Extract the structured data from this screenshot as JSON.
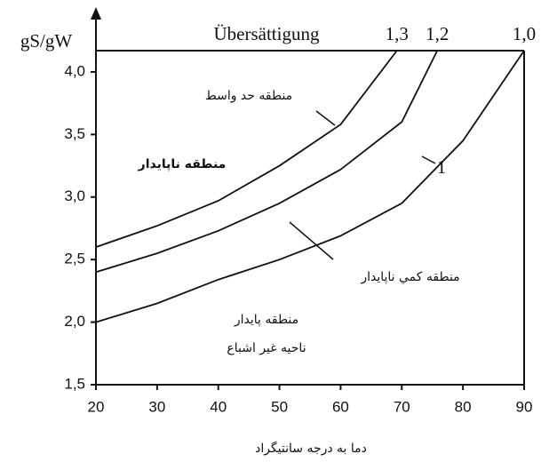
{
  "chart_data": {
    "type": "line",
    "title": "Übersättigung",
    "y_label": "gS/gW",
    "x_label": "دما به درجه سانتیگراد",
    "xlim": [
      20,
      90
    ],
    "xticks": [
      20,
      30,
      40,
      50,
      60,
      70,
      80,
      90
    ],
    "ylim": [
      1.5,
      4.17
    ],
    "yticks": [
      {
        "value": 1.5,
        "label": "1,5"
      },
      {
        "value": 2.0,
        "label": "2,0"
      },
      {
        "value": 2.5,
        "label": "2,5"
      },
      {
        "value": 3.0,
        "label": "3,0"
      },
      {
        "value": 3.5,
        "label": "3,5"
      },
      {
        "value": 4.0,
        "label": "4,0"
      }
    ],
    "color": "#111111",
    "series": [
      {
        "name": "1,3",
        "x": [
          20,
          30,
          40,
          50,
          60,
          69.2
        ],
        "values": [
          2.6,
          2.77,
          2.97,
          3.25,
          3.58,
          4.17
        ]
      },
      {
        "name": "1,2",
        "x": [
          20,
          30,
          40,
          50,
          60,
          70,
          75.8
        ],
        "values": [
          2.4,
          2.55,
          2.73,
          2.95,
          3.22,
          3.6,
          4.17
        ]
      },
      {
        "name": "1,0",
        "x": [
          20,
          30,
          40,
          50,
          60,
          70,
          80,
          90
        ],
        "values": [
          2.0,
          2.15,
          2.34,
          2.5,
          2.69,
          2.95,
          3.45,
          4.17
        ]
      }
    ],
    "annotations": [
      "منطقه حد واسط",
      "منطقه ناپايدار",
      "1",
      "منطقه كمي ناپايدار",
      "منطقه پايدار",
      "ناحيه غير اشباع"
    ]
  }
}
